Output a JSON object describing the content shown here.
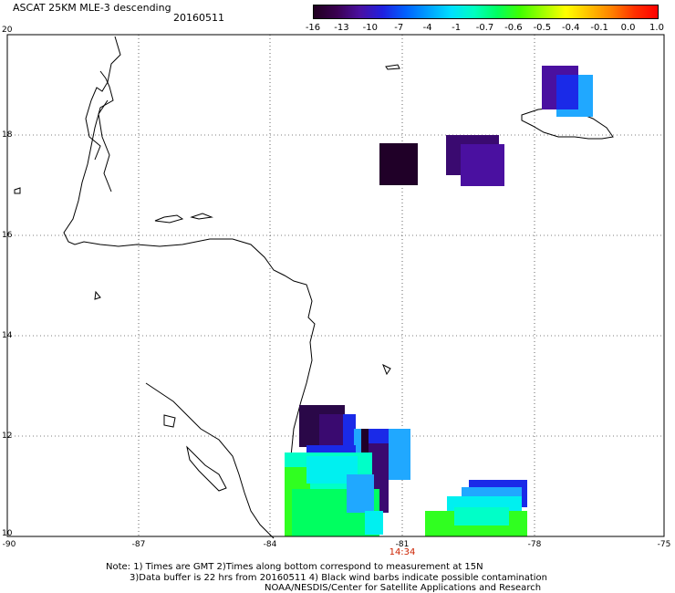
{
  "header": {
    "title": "ASCAT 25KM MLE-3 descending",
    "date": "20160511"
  },
  "colorbar": {
    "labels": [
      "-16",
      "-13",
      "-10",
      "-7",
      "-4",
      "-1",
      "-0.7",
      "-0.6",
      "-0.5",
      "-0.4",
      "-0.1",
      "0.0",
      "1.0"
    ],
    "colors": [
      "#200020",
      "#3a0050",
      "#4a10a0",
      "#2020e0",
      "#0060ff",
      "#00a0ff",
      "#00e0ff",
      "#00ffc0",
      "#00ff60",
      "#40ff00",
      "#a0ff00",
      "#ffff00",
      "#ffc000",
      "#ff8000",
      "#ff3000",
      "#ff0000"
    ]
  },
  "axes": {
    "lat_labels": [
      "20",
      "18",
      "16",
      "14",
      "12",
      "10"
    ],
    "lon_labels": [
      "-90",
      "-87",
      "-84",
      "-81",
      "-78",
      "-75"
    ]
  },
  "time_label": "14:34",
  "notes": {
    "line1": "Note: 1) Times are GMT 2)Times along bottom correspond to measurement at 15N",
    "line2": "3)Data buffer is 22 hrs from 20160511 4) Black wind barbs indicate possible contamination",
    "line3": "NOAA/NESDIS/Center for Satellite Applications and Research"
  },
  "colors": {
    "dark": "#200028",
    "purple": "#4a10a0",
    "blue": "#1a2ae8",
    "sky": "#20a8ff",
    "cyan": "#00f0f0",
    "aqua": "#00ffc8",
    "green": "#00ff60",
    "lime": "#30ff20"
  }
}
